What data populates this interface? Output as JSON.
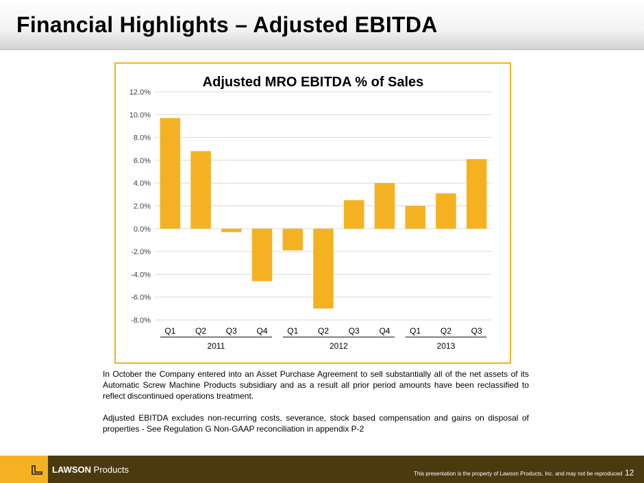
{
  "header": {
    "title": "Financial Highlights – Adjusted EBITDA"
  },
  "chart_data": {
    "type": "bar",
    "title": "Adjusted MRO EBITDA % of Sales",
    "categories": [
      "Q1",
      "Q2",
      "Q3",
      "Q4",
      "Q1",
      "Q2",
      "Q3",
      "Q4",
      "Q1",
      "Q2",
      "Q3"
    ],
    "groups": [
      {
        "label": "2011",
        "count": 4
      },
      {
        "label": "2012",
        "count": 4
      },
      {
        "label": "2013",
        "count": 3
      }
    ],
    "values": [
      9.7,
      6.8,
      -0.3,
      -4.6,
      -1.9,
      -7.0,
      2.5,
      4.0,
      2.0,
      3.1,
      6.1
    ],
    "ylim": [
      -8.0,
      12.0
    ],
    "yticks": [
      "12.0%",
      "10.0%",
      "8.0%",
      "6.0%",
      "4.0%",
      "2.0%",
      "0.0%",
      "-2.0%",
      "-4.0%",
      "-6.0%",
      "-8.0%"
    ],
    "ytick_values": [
      12,
      10,
      8,
      6,
      4,
      2,
      0,
      -2,
      -4,
      -6,
      -8
    ],
    "grid": true,
    "bar_color": "#f4b223",
    "grid_color": "#d9d9d9"
  },
  "notes": {
    "paragraph_1": "In October the Company entered into an Asset Purchase Agreement to sell substantially all of the net assets of its Automatic Screw Machine Products subsidiary and as a result all prior period amounts have been reclassified to reflect discontinued operations treatment.",
    "paragraph_2": "Adjusted EBITDA excludes non-recurring costs, severance, stock based compensation and gains on disposal of properties - See Regulation G Non-GAAP reconciliation in appendix P-2"
  },
  "footer": {
    "brand_bold": "LAWSON",
    "brand_rest": " Products",
    "disclaimer": "This presentation is the property of Lawson Products, Inc. and may not be reproduced",
    "page_number": "12",
    "footer_color": "#4a3a0e",
    "accent_color": "#f4b223",
    "logo_icon": "lawson-l-logo-icon"
  }
}
